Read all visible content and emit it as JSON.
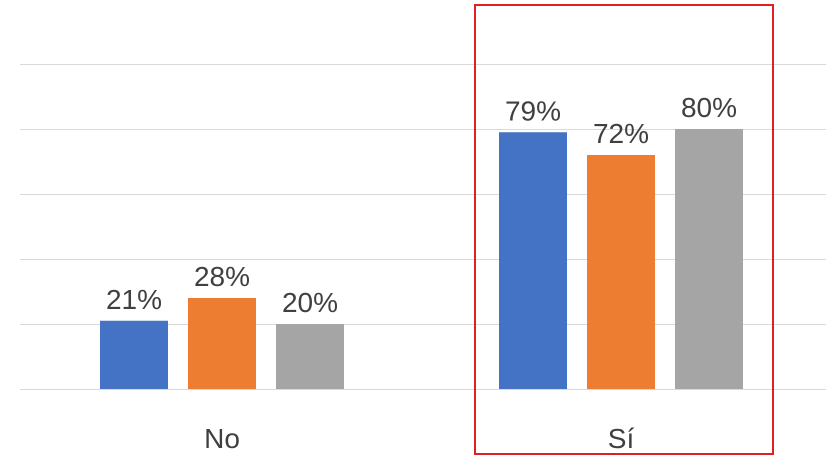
{
  "chart_data": {
    "type": "bar",
    "title": "",
    "xlabel": "",
    "ylabel": "",
    "categories": [
      "No",
      "Sí"
    ],
    "series": [
      {
        "color": "#4472c4",
        "values": [
          21,
          79
        ]
      },
      {
        "color": "#ed7d31",
        "values": [
          28,
          72
        ]
      },
      {
        "color": "#a5a5a5",
        "values": [
          20,
          80
        ]
      }
    ],
    "value_labels": {
      "No": [
        "21%",
        "28%",
        "20%"
      ],
      "Sí": [
        "79%",
        "72%",
        "80%"
      ]
    },
    "ylim": [
      0,
      100
    ],
    "grid": true,
    "legend": "none",
    "highlight": {
      "category": "Sí",
      "color": "#e02020"
    }
  }
}
